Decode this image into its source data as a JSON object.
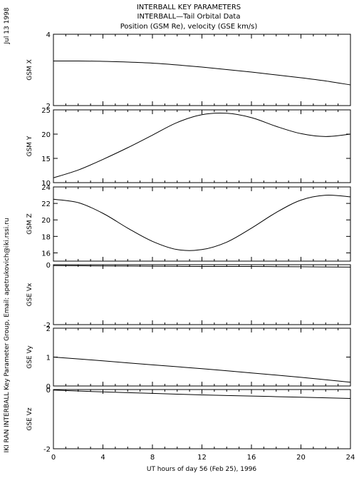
{
  "header": {
    "title_lines": [
      "INTERBALL KEY PARAMETERS",
      "INTERBALL—Tail Orbital Data",
      "Position (GSM Re), velocity (GSE km/s)"
    ]
  },
  "side_labels": {
    "date": "Jul 13 1998",
    "credit": "IKI RAN INTERBALL Key Parameter Group, Email: apetrukovich@iki.rssi.ru"
  },
  "chart_data": {
    "type": "line",
    "xlabel": "UT hours of day  56 (Feb 25), 1996",
    "xlim": [
      0,
      24
    ],
    "xticks": [
      0,
      4,
      8,
      12,
      16,
      20,
      24
    ],
    "panels": [
      {
        "ylabel": "GSM X",
        "ylim": [
          2,
          4
        ],
        "yticks": [
          2,
          4
        ],
        "x": [
          0,
          2,
          4,
          6,
          8,
          10,
          12,
          14,
          16,
          18,
          20,
          22,
          24
        ],
        "y": [
          3.25,
          3.25,
          3.24,
          3.22,
          3.19,
          3.14,
          3.08,
          3.01,
          2.94,
          2.86,
          2.78,
          2.69,
          2.58
        ]
      },
      {
        "ylabel": "GSM Y",
        "ylim": [
          10,
          25
        ],
        "yticks": [
          10,
          15,
          20,
          25
        ],
        "x": [
          0,
          2,
          4,
          6,
          8,
          10,
          12,
          14,
          16,
          18,
          20,
          22,
          24
        ],
        "y": [
          11.0,
          12.6,
          14.8,
          17.2,
          19.8,
          22.4,
          24.0,
          24.3,
          23.4,
          21.6,
          20.1,
          19.5,
          20.0
        ]
      },
      {
        "ylabel": "GSM Z",
        "ylim": [
          15,
          24
        ],
        "yticks": [
          16,
          18,
          20,
          22,
          24
        ],
        "x": [
          0,
          2,
          4,
          6,
          8,
          10,
          12,
          14,
          16,
          18,
          20,
          22,
          24
        ],
        "y": [
          22.5,
          22.1,
          20.8,
          19.0,
          17.4,
          16.4,
          16.4,
          17.3,
          19.0,
          20.9,
          22.4,
          23.0,
          22.8
        ]
      },
      {
        "ylabel": "GSE Vx",
        "ylim": [
          -2,
          0
        ],
        "yticks": [
          -2,
          0
        ],
        "x": [
          0,
          4,
          8,
          12,
          16,
          20,
          24
        ],
        "y": [
          -0.03,
          -0.04,
          -0.05,
          -0.06,
          -0.06,
          -0.07,
          -0.08
        ]
      },
      {
        "ylabel": "GSE Vy",
        "ylim": [
          0,
          2
        ],
        "yticks": [
          0,
          1,
          2
        ],
        "x": [
          0,
          4,
          8,
          12,
          16,
          20,
          24
        ],
        "y": [
          1.0,
          0.87,
          0.73,
          0.6,
          0.45,
          0.3,
          0.13
        ]
      },
      {
        "ylabel": "GSE Vz",
        "ylim": [
          -2,
          0
        ],
        "yticks": [
          -2,
          0
        ],
        "x": [
          0,
          4,
          8,
          12,
          16,
          20,
          24
        ],
        "y": [
          -0.02,
          -0.08,
          -0.13,
          -0.18,
          -0.22,
          -0.26,
          -0.3
        ]
      }
    ]
  }
}
